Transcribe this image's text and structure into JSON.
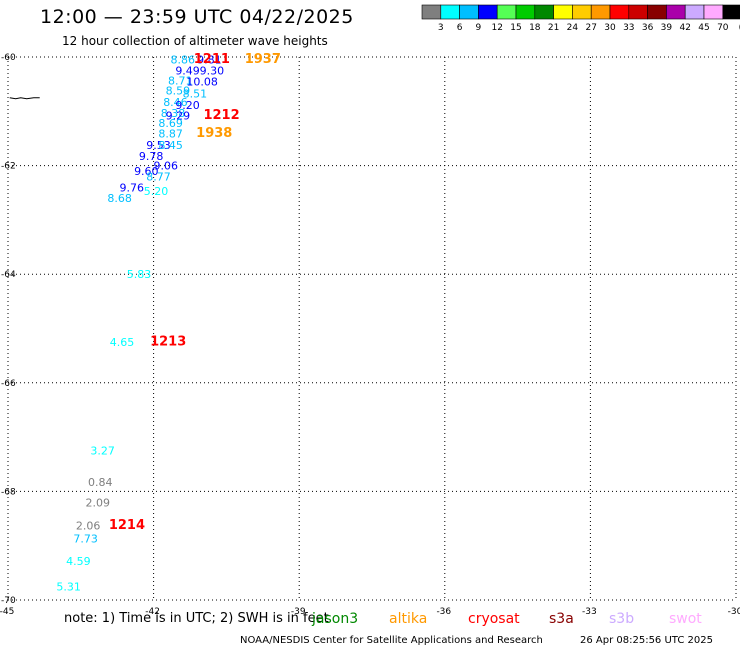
{
  "header": {
    "title": "12:00 — 23:59 UTC 04/22/2025",
    "subtitle": "12 hour collection of altimeter wave heights"
  },
  "colorbar": {
    "unit": "(ft)",
    "bins": [
      {
        "label": "3",
        "color": "#7f7f7f"
      },
      {
        "label": "6",
        "color": "#00ffff"
      },
      {
        "label": "9",
        "color": "#00bfff"
      },
      {
        "label": "12",
        "color": "#0000ff"
      },
      {
        "label": "15",
        "color": "#55ff55"
      },
      {
        "label": "18",
        "color": "#00cc00"
      },
      {
        "label": "21",
        "color": "#008800"
      },
      {
        "label": "24",
        "color": "#ffff00"
      },
      {
        "label": "27",
        "color": "#ffcc00"
      },
      {
        "label": "30",
        "color": "#ff9900"
      },
      {
        "label": "33",
        "color": "#ff0000"
      },
      {
        "label": "36",
        "color": "#cc0000"
      },
      {
        "label": "39",
        "color": "#880000"
      },
      {
        "label": "42",
        "color": "#aa00aa"
      },
      {
        "label": "45",
        "color": "#ccaaff"
      },
      {
        "label": "70",
        "color": "#ffaaff"
      },
      {
        "label": "",
        "color": "#000000"
      }
    ]
  },
  "chart_data": {
    "type": "scatter",
    "title": "12:00 — 23:59 UTC 04/22/2025",
    "subtitle": "12 hour collection of altimeter wave heights",
    "xlim": [
      -45,
      -30
    ],
    "ylim": [
      -70,
      -60
    ],
    "x_ticks": [
      "-45",
      "-42",
      "-39",
      "-36",
      "-33",
      "-30"
    ],
    "x_tick_values": [
      -45,
      -42,
      -39,
      -36,
      -33,
      -30
    ],
    "y_ticks": [
      "-60",
      "-62",
      "-64",
      "-66",
      "-68",
      "-70"
    ],
    "y_tick_values": [
      -60,
      -62,
      -64,
      -66,
      -68,
      -70
    ],
    "grid": true,
    "points": [
      {
        "lon": -41.4,
        "lat": -60.05,
        "value": "8.86",
        "color": "#00bfff"
      },
      {
        "lon": -40.85,
        "lat": -60.05,
        "value": "9.81",
        "color": "#0000ff"
      },
      {
        "lon": -41.3,
        "lat": -60.25,
        "value": "9.49",
        "color": "#0000ff"
      },
      {
        "lon": -40.8,
        "lat": -60.25,
        "value": "9.30",
        "color": "#0000ff"
      },
      {
        "lon": -41.45,
        "lat": -60.43,
        "value": "8.71",
        "color": "#00bfff"
      },
      {
        "lon": -41.0,
        "lat": -60.45,
        "value": "10.08",
        "color": "#0000ff"
      },
      {
        "lon": -41.5,
        "lat": -60.62,
        "value": "8.59",
        "color": "#00bfff"
      },
      {
        "lon": -41.15,
        "lat": -60.67,
        "value": "8.51",
        "color": "#00bfff"
      },
      {
        "lon": -41.55,
        "lat": -60.83,
        "value": "8.46",
        "color": "#00bfff"
      },
      {
        "lon": -41.3,
        "lat": -60.88,
        "value": "9.20",
        "color": "#0000ff"
      },
      {
        "lon": -41.6,
        "lat": -61.03,
        "value": "8.38",
        "color": "#00bfff"
      },
      {
        "lon": -41.5,
        "lat": -61.08,
        "value": "9.29",
        "color": "#0000ff"
      },
      {
        "lon": -41.65,
        "lat": -61.22,
        "value": "8.69",
        "color": "#00bfff"
      },
      {
        "lon": -41.65,
        "lat": -61.41,
        "value": "8.87",
        "color": "#00bfff"
      },
      {
        "lon": -41.9,
        "lat": -61.62,
        "value": "9.53",
        "color": "#0000ff"
      },
      {
        "lon": -41.65,
        "lat": -61.62,
        "value": "8.45",
        "color": "#00bfff"
      },
      {
        "lon": -42.05,
        "lat": -61.82,
        "value": "9.78",
        "color": "#0000ff"
      },
      {
        "lon": -41.75,
        "lat": -62.0,
        "value": "9.06",
        "color": "#0000ff"
      },
      {
        "lon": -42.15,
        "lat": -62.1,
        "value": "9.60",
        "color": "#0000ff"
      },
      {
        "lon": -41.9,
        "lat": -62.2,
        "value": "8.77",
        "color": "#00bfff"
      },
      {
        "lon": -42.45,
        "lat": -62.4,
        "value": "9.76",
        "color": "#0000ff"
      },
      {
        "lon": -41.95,
        "lat": -62.47,
        "value": "5.20",
        "color": "#00ffff"
      },
      {
        "lon": -42.7,
        "lat": -62.6,
        "value": "8.68",
        "color": "#00bfff"
      },
      {
        "lon": -42.3,
        "lat": -64.0,
        "value": "5.83",
        "color": "#00ffff"
      },
      {
        "lon": -42.65,
        "lat": -65.25,
        "value": "4.65",
        "color": "#00ffff"
      },
      {
        "lon": -43.05,
        "lat": -67.25,
        "value": "3.27",
        "color": "#00ffff"
      },
      {
        "lon": -43.1,
        "lat": -67.83,
        "value": "0.84",
        "color": "#7f7f7f"
      },
      {
        "lon": -43.15,
        "lat": -68.2,
        "value": "2.09",
        "color": "#7f7f7f"
      },
      {
        "lon": -43.35,
        "lat": -68.63,
        "value": "2.06",
        "color": "#7f7f7f"
      },
      {
        "lon": -43.4,
        "lat": -68.87,
        "value": "7.73",
        "color": "#00bfff"
      },
      {
        "lon": -43.55,
        "lat": -69.28,
        "value": "4.59",
        "color": "#00ffff"
      },
      {
        "lon": -43.75,
        "lat": -69.75,
        "value": "5.31",
        "color": "#00ffff"
      }
    ],
    "time_labels": [
      {
        "lon": -40.8,
        "lat": -60.02,
        "text": "1211",
        "color": "#ff0000"
      },
      {
        "lon": -39.75,
        "lat": -60.02,
        "text": "1937",
        "color": "#ff9900"
      },
      {
        "lon": -40.6,
        "lat": -61.05,
        "text": "1212",
        "color": "#ff0000"
      },
      {
        "lon": -40.75,
        "lat": -61.38,
        "text": "1938",
        "color": "#ff9900"
      },
      {
        "lon": -41.7,
        "lat": -65.22,
        "text": "1213",
        "color": "#ff0000"
      },
      {
        "lon": -42.55,
        "lat": -68.6,
        "text": "1214",
        "color": "#ff0000"
      }
    ],
    "land": [
      {
        "lon": -44.8,
        "lat": -60.75
      }
    ]
  },
  "footer": {
    "note": "note:  1) Time is in UTC;  2) SWH is in feet",
    "satellites": [
      {
        "name": "jason3",
        "color": "#008800"
      },
      {
        "name": "altika",
        "color": "#ff9900"
      },
      {
        "name": "cryosat",
        "color": "#ff0000"
      },
      {
        "name": "s3a",
        "color": "#880000"
      },
      {
        "name": "s3b",
        "color": "#ccaaff"
      },
      {
        "name": "swot",
        "color": "#ffaaff"
      }
    ],
    "credit": "NOAA/NESDIS Center for Satellite Applications and Research",
    "timestamp": "26 Apr 08:25:56 UTC 2025"
  }
}
